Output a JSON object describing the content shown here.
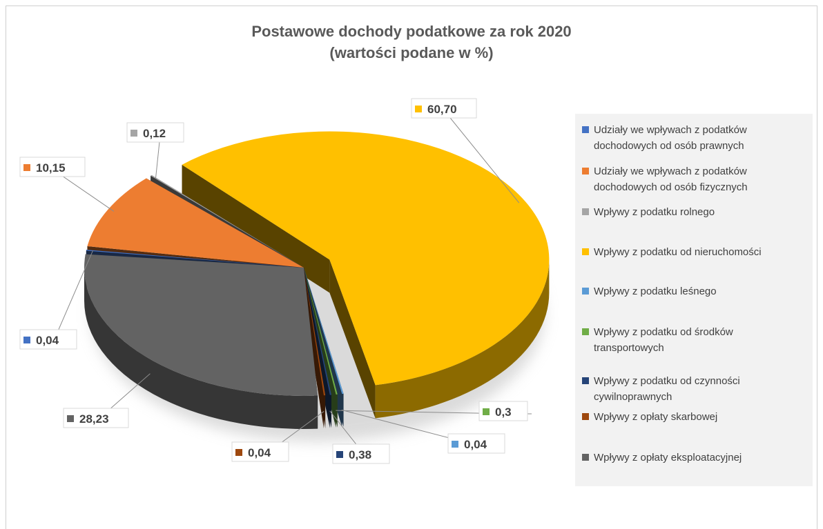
{
  "chart_data": {
    "type": "pie",
    "title": "Postawowe dochody podatkowe za rok 2020",
    "subtitle": "(wartości podane w %)",
    "legend_placement": "right",
    "slices": [
      {
        "label": [
          "Udziały we wpływach z podatków",
          "dochodowych od osób prawnych"
        ],
        "value_label": "0,04",
        "value": 0.04,
        "color": "#4472c4"
      },
      {
        "label": [
          "Udziały we wpływach z podatków",
          "dochodowych od osób fizycznych"
        ],
        "value_label": "10,15",
        "value": 10.15,
        "color": "#ed7d31"
      },
      {
        "label": [
          "Wpływy z podatku rolnego"
        ],
        "value_label": "0,12",
        "value": 0.12,
        "color": "#a5a5a5"
      },
      {
        "label": [
          "Wpływy z podatku od nieruchomości"
        ],
        "value_label": "60,70",
        "value": 60.7,
        "color": "#ffc000"
      },
      {
        "label": [
          "Wpływy z podatku leśnego"
        ],
        "value_label": "0,04",
        "value": 0.04,
        "color": "#5b9bd5"
      },
      {
        "label": [
          "Wpływy z podatku od środków",
          "transportowych"
        ],
        "value_label": "0,3",
        "value": 0.3,
        "color": "#70ad47"
      },
      {
        "label": [
          "Wpływy z podatku od czynności",
          "cywilnoprawnych"
        ],
        "value_label": "0,38",
        "value": 0.38,
        "color": "#264478"
      },
      {
        "label": [
          "Wpływy z opłaty skarbowej"
        ],
        "value_label": "0,04",
        "value": 0.04,
        "color": "#9e480e"
      },
      {
        "label": [
          "Wpływy z opłaty eksploatacyjnej"
        ],
        "value_label": "28,23",
        "value": 28.23,
        "color": "#636363"
      }
    ]
  }
}
